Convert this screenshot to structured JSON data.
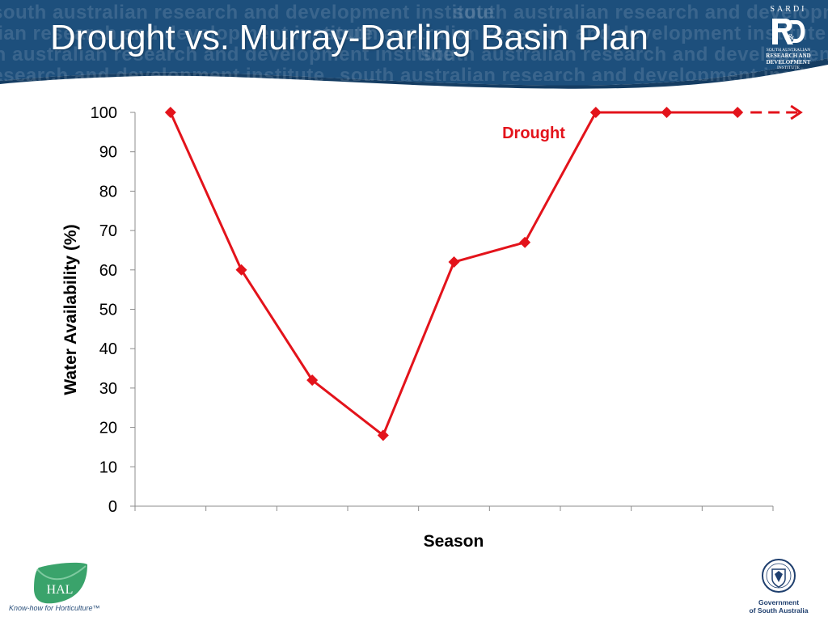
{
  "slide": {
    "title": "Drought vs. Murray-Darling Basin Plan",
    "watermark_text": "south australian research and development institute"
  },
  "logos": {
    "sardi": {
      "top": "SARDI",
      "line1": "SOUTH AUSTRALIAN",
      "line2": "RESEARCH AND",
      "line3": "DEVELOPMENT",
      "line4": "INSTITUTE"
    },
    "hal": {
      "name": "HAL",
      "tagline": "Know-how for Horticulture™"
    },
    "government": {
      "line1": "Government",
      "line2": "of South Australia"
    }
  },
  "colors": {
    "banner": "#1d4f7c",
    "banner_dark": "#153d63",
    "series": "#e3131b",
    "hal_green": "#3aa36b"
  },
  "chart_data": {
    "type": "line",
    "title": "",
    "xlabel": "Season",
    "ylabel": "Water Availability (%)",
    "ylim": [
      0,
      100
    ],
    "yticks": [
      "0",
      "10",
      "20",
      "30",
      "40",
      "50",
      "60",
      "70",
      "80",
      "90",
      "100"
    ],
    "categories": [
      "",
      "",
      "",
      "",
      "",
      "",
      "",
      "",
      ""
    ],
    "series": [
      {
        "name": "Drought",
        "values": [
          100,
          60,
          32,
          18,
          62,
          67,
          100,
          100,
          100
        ],
        "color": "#e3131b",
        "continuation": "dashed arrow"
      }
    ],
    "annotations": [
      {
        "text": "Drought",
        "color": "#e3131b"
      }
    ],
    "grid": false
  }
}
